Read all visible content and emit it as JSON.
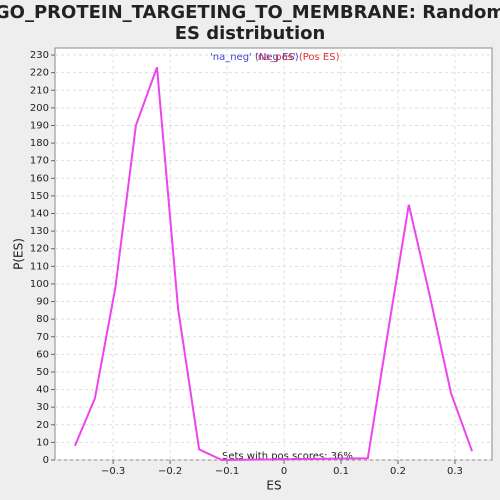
{
  "chart_data": {
    "type": "line",
    "title": "GO_PROTEIN_TARGETING_TO_MEMBRANE: Random ES distribution",
    "xlabel": "ES",
    "ylabel": "P(ES)",
    "legend": [
      {
        "label": "'na_neg' (Neg ES)",
        "color": "#4444cc"
      },
      {
        "label": "'na_pos' (Pos ES)",
        "color": "#dd3333"
      }
    ],
    "annotation": "Sets with pos scores: 36%",
    "series": [
      {
        "color": "#ee44ee",
        "x": [
          -0.367,
          -0.332,
          -0.296,
          -0.26,
          -0.223,
          -0.186,
          -0.149,
          -0.109,
          0.147,
          0.184,
          0.219,
          0.256,
          0.293,
          0.33
        ],
        "values": [
          8,
          35,
          98,
          190,
          223,
          86,
          6,
          0,
          1,
          76,
          145,
          93,
          38,
          5
        ]
      }
    ],
    "xlim": [
      -0.402,
      0.365
    ],
    "ylim": [
      0,
      234
    ],
    "xticks": [
      {
        "value": -0.3,
        "label": "−0.3"
      },
      {
        "value": -0.2,
        "label": "−0.2"
      },
      {
        "value": -0.1,
        "label": "−0.1"
      },
      0,
      0.1,
      0.2,
      0.3
    ],
    "yticks": [
      0,
      10,
      20,
      30,
      40,
      50,
      60,
      70,
      80,
      90,
      100,
      110,
      120,
      130,
      140,
      150,
      160,
      170,
      180,
      190,
      200,
      210,
      220,
      230
    ],
    "grid": true
  }
}
